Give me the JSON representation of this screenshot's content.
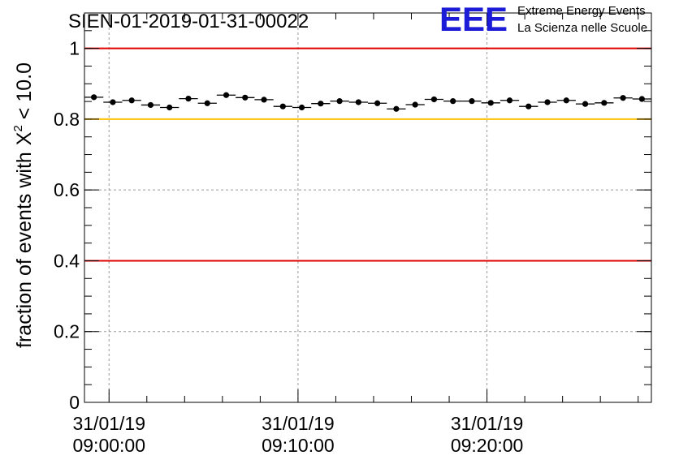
{
  "colors": {
    "red_line": "#e00000",
    "yellow_line": "#ffc000",
    "grid": "#9a9a9a",
    "marker": "#000000",
    "logo_blue": "#1c1cd8"
  },
  "logo": {
    "letters": "EEE",
    "line1": "Extreme Energy Events",
    "line2": "La Scienza nelle Scuole"
  },
  "chart_data": {
    "type": "scatter",
    "title": "SIEN-01-2019-01-31-00022",
    "ylabel": "fraction of events with",
    "ylabel_symbol": "X",
    "ylabel_superscript": "2",
    "ylabel_suffix": " < 10.0",
    "xlabel": "",
    "ylim": [
      0,
      1.1
    ],
    "xlim_minutes": [
      -1.3,
      28.7
    ],
    "grid": true,
    "y_ticks": [
      {
        "value": 0,
        "label": "0"
      },
      {
        "value": 0.2,
        "label": "0.2"
      },
      {
        "value": 0.4,
        "label": "0.4"
      },
      {
        "value": 0.6,
        "label": "0.6"
      },
      {
        "value": 0.8,
        "label": "0.8"
      },
      {
        "value": 1.0,
        "label": "1"
      }
    ],
    "x_ticks": [
      {
        "minutes": 0,
        "date": "31/01/19",
        "time": "09:00:00"
      },
      {
        "minutes": 10,
        "date": "31/01/19",
        "time": "09:10:00"
      },
      {
        "minutes": 20,
        "date": "31/01/19",
        "time": "09:20:00"
      }
    ],
    "reference_lines": [
      {
        "y": 1.0,
        "color": "red"
      },
      {
        "y": 0.8,
        "color": "yellow"
      },
      {
        "y": 0.4,
        "color": "red"
      }
    ],
    "bin_width_minutes": 1,
    "series": [
      {
        "name": "fraction",
        "x_minutes": [
          -0.8,
          0.2,
          1.2,
          2.2,
          3.2,
          4.2,
          5.2,
          6.2,
          7.2,
          8.2,
          9.2,
          10.2,
          11.2,
          12.2,
          13.2,
          14.2,
          15.2,
          16.2,
          17.2,
          18.2,
          19.2,
          20.2,
          21.2,
          22.2,
          23.2,
          24.2,
          25.2,
          26.2,
          27.2,
          28.2
        ],
        "values": [
          0.862,
          0.848,
          0.853,
          0.84,
          0.833,
          0.858,
          0.845,
          0.868,
          0.861,
          0.855,
          0.836,
          0.833,
          0.844,
          0.851,
          0.848,
          0.845,
          0.829,
          0.841,
          0.856,
          0.851,
          0.851,
          0.846,
          0.853,
          0.836,
          0.848,
          0.853,
          0.843,
          0.846,
          0.86,
          0.857
        ]
      }
    ]
  }
}
